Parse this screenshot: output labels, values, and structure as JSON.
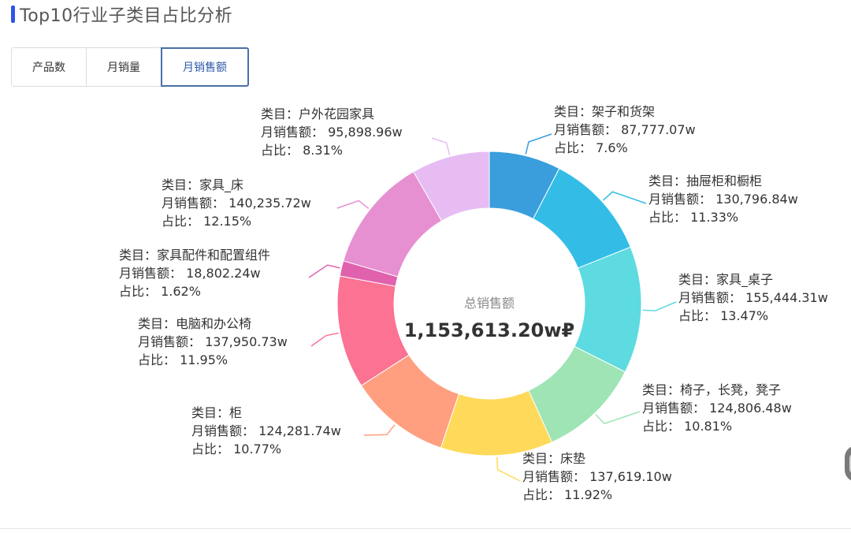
{
  "header": {
    "title": "Top10行业子类目占比分析"
  },
  "tabs": [
    {
      "label": "产品数",
      "active": false
    },
    {
      "label": "月销量",
      "active": false
    },
    {
      "label": "月销售额",
      "active": true
    }
  ],
  "center": {
    "caption": "总销售额",
    "total": "1,153,613.20w₽"
  },
  "label_prefix": {
    "category": "类目：",
    "value": "月销售额：",
    "share": "占比："
  },
  "chart_data": {
    "type": "pie",
    "donut": true,
    "series_name": "月销售额",
    "slices": [
      {
        "category": "架子和货架",
        "value": 87777.07,
        "value_text": "87,777.07w",
        "percent": 7.6,
        "percent_text": "7.6%",
        "color": "#3a9edd"
      },
      {
        "category": "抽屉柜和橱柜",
        "value": 130796.84,
        "value_text": "130,796.84w",
        "percent": 11.33,
        "percent_text": "11.33%",
        "color": "#33bde6"
      },
      {
        "category": "家具_桌子",
        "value": 155444.31,
        "value_text": "155,444.31w",
        "percent": 13.47,
        "percent_text": "13.47%",
        "color": "#5ddbe0"
      },
      {
        "category": "椅子，长凳，凳子",
        "value": 124806.48,
        "value_text": "124,806.48w",
        "percent": 10.81,
        "percent_text": "10.81%",
        "color": "#9fe4b4"
      },
      {
        "category": "床垫",
        "value": 137619.1,
        "value_text": "137,619.10w",
        "percent": 11.92,
        "percent_text": "11.92%",
        "color": "#ffd95a"
      },
      {
        "category": "柜",
        "value": 124281.74,
        "value_text": "124,281.74w",
        "percent": 10.77,
        "percent_text": "10.77%",
        "color": "#ff9f7f"
      },
      {
        "category": "电脑和办公椅",
        "value": 137950.73,
        "value_text": "137,950.73w",
        "percent": 11.95,
        "percent_text": "11.95%",
        "color": "#fb7293"
      },
      {
        "category": "家具配件和配置组件",
        "value": 18802.24,
        "value_text": "18,802.24w",
        "percent": 1.62,
        "percent_text": "1.62%",
        "color": "#e062ae"
      },
      {
        "category": "家具_床",
        "value": 140235.72,
        "value_text": "140,235.72w",
        "percent": 12.15,
        "percent_text": "12.15%",
        "color": "#e690d1"
      },
      {
        "category": "户外花园家具",
        "value": 95898.96,
        "value_text": "95,898.96w",
        "percent": 8.31,
        "percent_text": "8.31%",
        "color": "#e7bcf3"
      }
    ]
  }
}
